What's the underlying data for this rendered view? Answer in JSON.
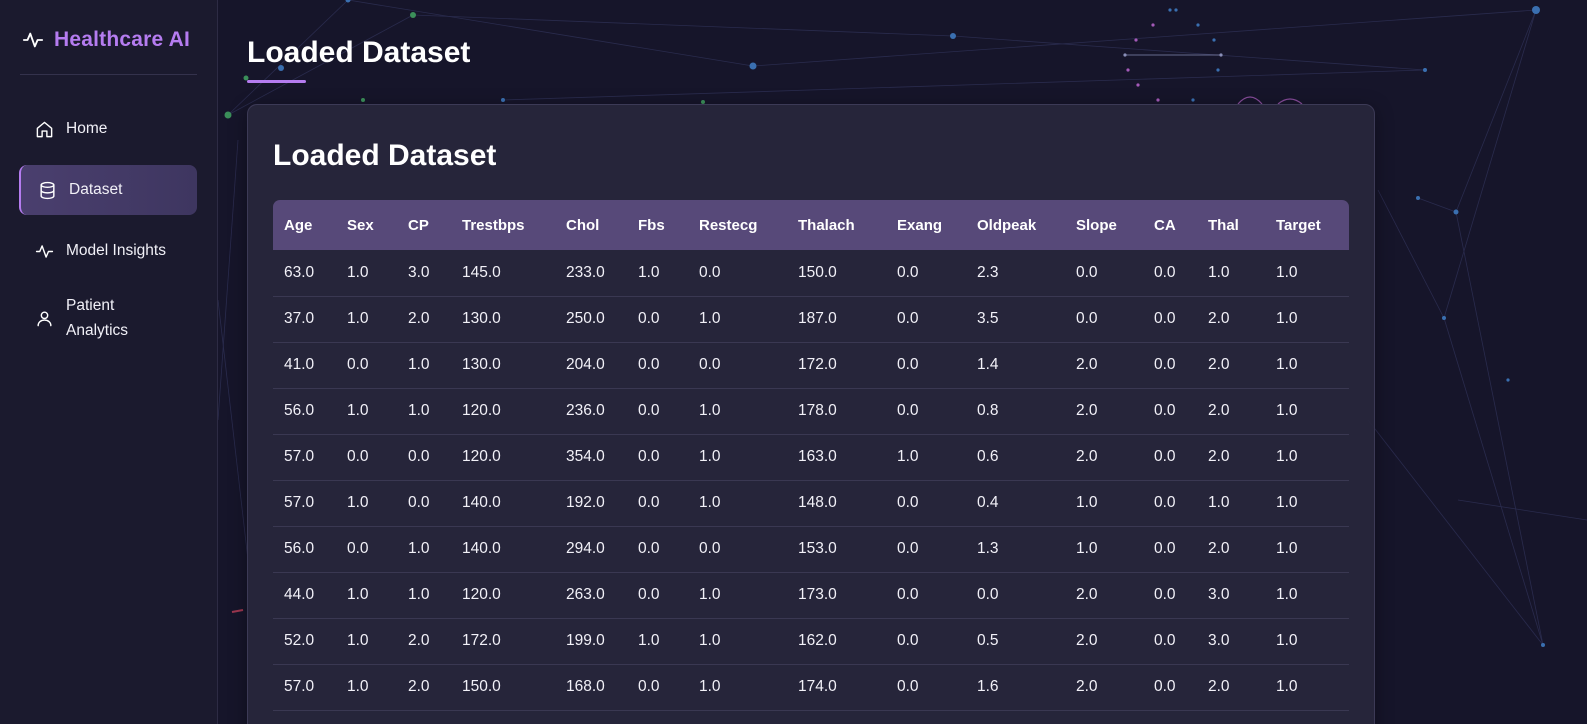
{
  "brand": {
    "name": "Healthcare AI",
    "icon": "activity-pulse-icon",
    "accent": "#b57cf0"
  },
  "nav": [
    {
      "label": "Home",
      "icon": "home-icon",
      "active": false
    },
    {
      "label": "Dataset",
      "icon": "database-icon",
      "active": true
    },
    {
      "label": "Model Insights",
      "icon": "activity-pulse-icon",
      "active": false
    },
    {
      "label": "Patient Analytics",
      "label_line1": "Patient",
      "label_line2": "Analytics",
      "icon": "user-icon",
      "active": false
    }
  ],
  "page": {
    "title": "Loaded Dataset"
  },
  "card": {
    "title": "Loaded Dataset"
  },
  "table": {
    "columns": [
      "Age",
      "Sex",
      "CP",
      "Trestbps",
      "Chol",
      "Fbs",
      "Restecg",
      "Thalach",
      "Exang",
      "Oldpeak",
      "Slope",
      "CA",
      "Thal",
      "Target"
    ],
    "rows": [
      [
        "63.0",
        "1.0",
        "3.0",
        "145.0",
        "233.0",
        "1.0",
        "0.0",
        "150.0",
        "0.0",
        "2.3",
        "0.0",
        "0.0",
        "1.0",
        "1.0"
      ],
      [
        "37.0",
        "1.0",
        "2.0",
        "130.0",
        "250.0",
        "0.0",
        "1.0",
        "187.0",
        "0.0",
        "3.5",
        "0.0",
        "0.0",
        "2.0",
        "1.0"
      ],
      [
        "41.0",
        "0.0",
        "1.0",
        "130.0",
        "204.0",
        "0.0",
        "0.0",
        "172.0",
        "0.0",
        "1.4",
        "2.0",
        "0.0",
        "2.0",
        "1.0"
      ],
      [
        "56.0",
        "1.0",
        "1.0",
        "120.0",
        "236.0",
        "0.0",
        "1.0",
        "178.0",
        "0.0",
        "0.8",
        "2.0",
        "0.0",
        "2.0",
        "1.0"
      ],
      [
        "57.0",
        "0.0",
        "0.0",
        "120.0",
        "354.0",
        "0.0",
        "1.0",
        "163.0",
        "1.0",
        "0.6",
        "2.0",
        "0.0",
        "2.0",
        "1.0"
      ],
      [
        "57.0",
        "1.0",
        "0.0",
        "140.0",
        "192.0",
        "0.0",
        "1.0",
        "148.0",
        "0.0",
        "0.4",
        "1.0",
        "0.0",
        "1.0",
        "1.0"
      ],
      [
        "56.0",
        "0.0",
        "1.0",
        "140.0",
        "294.0",
        "0.0",
        "0.0",
        "153.0",
        "0.0",
        "1.3",
        "1.0",
        "0.0",
        "2.0",
        "1.0"
      ],
      [
        "44.0",
        "1.0",
        "1.0",
        "120.0",
        "263.0",
        "0.0",
        "1.0",
        "173.0",
        "0.0",
        "0.0",
        "2.0",
        "0.0",
        "3.0",
        "1.0"
      ],
      [
        "52.0",
        "1.0",
        "2.0",
        "172.0",
        "199.0",
        "1.0",
        "1.0",
        "162.0",
        "0.0",
        "0.5",
        "2.0",
        "0.0",
        "3.0",
        "1.0"
      ],
      [
        "57.0",
        "1.0",
        "2.0",
        "150.0",
        "168.0",
        "0.0",
        "1.0",
        "174.0",
        "0.0",
        "1.6",
        "2.0",
        "0.0",
        "2.0",
        "1.0"
      ]
    ]
  },
  "colors": {
    "header_bg": "#574979",
    "sidebar_bg": "#1b1a2e",
    "page_bg": "#16152a",
    "card_bg": "#27263c"
  }
}
